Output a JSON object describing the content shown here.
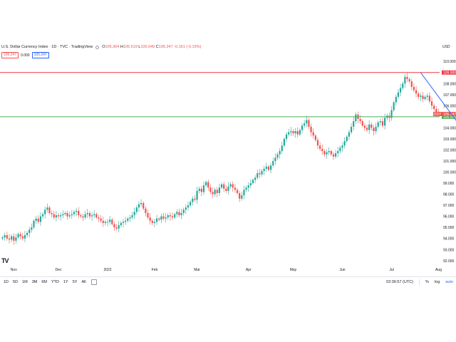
{
  "header": {
    "title": "U.S. Dollar Currency Index · 1D · TVC · TradingView",
    "ohlc": {
      "open_label": "O",
      "open": "105.364",
      "high_label": "H",
      "high": "105.619",
      "low_label": "L",
      "low": "105.049",
      "close_label": "C",
      "close": "105.247",
      "change": "-0.161 (-0.15%)"
    },
    "sell_price": "105.247",
    "spread": "0.000",
    "buy_price": "105.247"
  },
  "currency": "USD",
  "logo_text": "TV",
  "toolbar": {
    "timeframes": [
      "1D",
      "5D",
      "1M",
      "3M",
      "6M",
      "YTD",
      "1Y",
      "5Y",
      "All"
    ],
    "time": "02:36:57 (UTC)",
    "percent": "%",
    "log": "log",
    "auto": "auto"
  },
  "colors": {
    "up": "#26a69a",
    "down": "#ef5350",
    "resistance": "#f23645",
    "support": "#4caf50",
    "arrow": "#2962ff",
    "symbol_tag": "#ef5350"
  },
  "chart_data": {
    "type": "candlestick",
    "symbol_tag": "DXY",
    "x_ticks": [
      "Nov",
      "Dec",
      "2022",
      "Feb",
      "Mar",
      "Apr",
      "May",
      "Jun",
      "Jul",
      "Aug"
    ],
    "y_ticks": [
      "92.000",
      "93.000",
      "94.000",
      "95.000",
      "96.000",
      "97.000",
      "98.000",
      "99.000",
      "100.000",
      "101.000",
      "102.000",
      "103.000",
      "104.000",
      "105.000",
      "106.000",
      "107.000",
      "108.000",
      "109.000",
      "110.000"
    ],
    "ylim": [
      91.6,
      110.4
    ],
    "last_price": "105.247",
    "horizontal_lines": [
      {
        "level": 109.0,
        "label": "109.000",
        "color": "resistance"
      },
      {
        "level": 105.0,
        "label": "105.000",
        "color": "support"
      }
    ],
    "trend_arrow": {
      "from": [
        "Jul",
        109.0
      ],
      "to": [
        "Aug",
        104.2
      ]
    },
    "series": [
      {
        "month": "Oct",
        "closes": [
          94.1,
          94.3,
          94.0,
          93.9,
          94.2
        ]
      },
      {
        "month": "Nov",
        "closes": [
          93.8,
          94.1,
          94.4,
          94.2,
          94.0,
          94.3,
          94.5,
          94.8,
          95.0,
          95.6,
          95.8,
          95.5,
          96.0,
          96.2,
          96.6,
          96.8,
          96.3,
          96.2,
          95.9,
          96.1
        ]
      },
      {
        "month": "Dec",
        "closes": [
          96.0,
          96.1,
          96.2,
          96.3,
          96.0,
          96.1,
          96.2,
          96.4,
          96.5,
          96.1,
          96.0,
          95.9,
          96.2,
          96.3,
          96.0,
          96.1,
          96.2,
          95.9,
          95.8,
          95.6,
          95.4,
          95.5
        ]
      },
      {
        "month": "Jan",
        "closes": [
          95.5,
          95.7,
          95.3,
          95.0,
          94.9,
          95.2,
          95.4,
          95.5,
          95.6,
          95.8,
          95.9,
          96.1,
          96.4,
          96.8,
          97.1,
          97.2,
          96.7,
          96.3,
          95.9,
          95.6,
          95.4
        ]
      },
      {
        "month": "Feb",
        "closes": [
          95.5,
          95.8,
          95.7,
          96.0,
          95.8,
          95.9,
          96.1,
          96.0,
          95.9,
          96.2,
          96.4,
          96.1,
          96.3,
          96.6,
          96.8,
          97.0,
          97.3,
          97.6,
          97.5
        ]
      },
      {
        "month": "Mar",
        "closes": [
          98.3,
          98.5,
          98.2,
          98.8,
          99.1,
          98.6,
          98.2,
          98.0,
          98.4,
          98.1,
          98.6,
          98.9,
          98.5,
          98.3,
          98.7,
          98.9,
          98.6,
          98.4,
          98.1,
          97.6,
          97.9,
          98.4,
          98.6
        ]
      },
      {
        "month": "Apr",
        "closes": [
          98.8,
          99.0,
          99.3,
          99.5,
          99.9,
          99.8,
          100.1,
          100.3,
          100.5,
          100.2,
          100.6,
          101.0,
          101.3,
          101.6,
          101.9,
          102.4,
          103.0,
          103.4,
          103.6,
          103.7
        ]
      },
      {
        "month": "May",
        "closes": [
          103.5,
          103.7,
          103.4,
          103.8,
          104.2,
          104.4,
          104.7,
          104.1,
          103.6,
          103.3,
          102.9,
          102.4,
          102.1,
          101.9,
          101.6,
          101.8,
          101.9,
          101.6,
          101.4,
          101.7,
          101.9,
          102.2
        ]
      },
      {
        "month": "Jun",
        "closes": [
          102.4,
          102.8,
          103.2,
          103.6,
          104.1,
          104.6,
          105.2,
          104.8,
          104.6,
          104.2,
          104.0,
          103.8,
          104.3,
          104.0,
          103.7,
          104.1,
          104.5,
          104.6,
          104.2,
          104.9,
          105.1,
          104.9
        ]
      },
      {
        "month": "Jul",
        "closes": [
          105.6,
          106.3,
          106.8,
          107.2,
          107.6,
          108.0,
          108.6,
          108.4,
          108.2,
          107.7,
          107.4,
          107.1,
          106.8,
          106.9,
          106.6,
          106.8,
          106.9,
          106.4,
          106.0,
          105.7,
          105.4
        ]
      },
      {
        "month": "Aug",
        "closes": [
          105.25
        ]
      }
    ]
  }
}
